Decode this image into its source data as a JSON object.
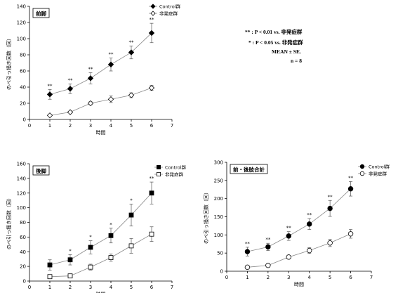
{
  "notes": {
    "line1": "** : P < 0.01 vs. 非発症群",
    "line2": "* : P < 0.05 vs. 非発症群",
    "line3": "MEAN ± SE.",
    "line4": "n = 8"
  },
  "chart_data": [
    {
      "type": "line",
      "title": "前脚",
      "xlabel": "時間",
      "ylabel": "のべ引っ掻き回数（回）",
      "x": [
        1,
        2,
        3,
        4,
        5,
        6
      ],
      "xlim": [
        0,
        7
      ],
      "ylim": [
        0,
        140
      ],
      "yticks": [
        0,
        20,
        40,
        60,
        80,
        100,
        120,
        140
      ],
      "legend": "top-right",
      "series": [
        {
          "name": "Control群",
          "marker": "diamond",
          "filled": true,
          "values": [
            31,
            38,
            51,
            68,
            83,
            107
          ],
          "errors": [
            6,
            6,
            7,
            8,
            8,
            12
          ],
          "sig": [
            "**",
            "**",
            "**",
            "**",
            "**",
            "**"
          ]
        },
        {
          "name": "非発症群",
          "marker": "diamond",
          "filled": false,
          "values": [
            5,
            9,
            20,
            25,
            30,
            39
          ],
          "errors": [
            1,
            1,
            2,
            4,
            3,
            3
          ]
        }
      ]
    },
    {
      "type": "line",
      "title": "後脚",
      "xlabel": "時間",
      "ylabel": "のべ引っ掻き回数（回）",
      "x": [
        1,
        2,
        3,
        4,
        5,
        6
      ],
      "xlim": [
        0,
        7
      ],
      "ylim": [
        0,
        160
      ],
      "yticks": [
        0,
        20,
        40,
        60,
        80,
        100,
        120,
        140,
        160
      ],
      "legend": "top-right",
      "series": [
        {
          "name": "Control群",
          "marker": "square",
          "filled": true,
          "values": [
            22,
            29,
            46,
            62,
            90,
            120
          ],
          "errors": [
            7,
            7,
            9,
            10,
            15,
            15
          ],
          "sig": [
            "",
            "*",
            "*",
            "*",
            "*",
            "**"
          ]
        },
        {
          "name": "非発症群",
          "marker": "square",
          "filled": false,
          "values": [
            6,
            7,
            19,
            32,
            48,
            64
          ],
          "errors": [
            1,
            2,
            4,
            5,
            10,
            10
          ]
        }
      ]
    },
    {
      "type": "line",
      "title": "前・後肢合計",
      "xlabel": "時間",
      "ylabel": "のべ引っ掻き回数（回）",
      "x": [
        1,
        2,
        3,
        4,
        5,
        6
      ],
      "xlim": [
        0,
        7
      ],
      "ylim": [
        0,
        300
      ],
      "yticks": [
        0,
        50,
        100,
        150,
        200,
        250,
        300
      ],
      "legend": "top-right",
      "series": [
        {
          "name": "Control群",
          "marker": "circle",
          "filled": true,
          "values": [
            54,
            67,
            97,
            130,
            173,
            227
          ],
          "errors": [
            12,
            10,
            12,
            15,
            22,
            20
          ],
          "sig": [
            "**",
            "**",
            "**",
            "**",
            "**",
            "**"
          ]
        },
        {
          "name": "非発症群",
          "marker": "circle",
          "filled": false,
          "values": [
            11,
            16,
            39,
            57,
            78,
            103
          ],
          "errors": [
            2,
            2,
            4,
            8,
            10,
            12
          ]
        }
      ]
    }
  ]
}
